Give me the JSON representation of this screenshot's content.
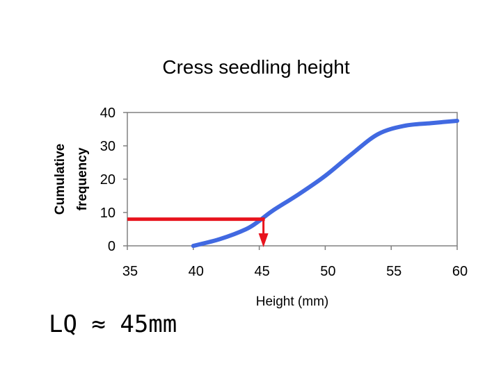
{
  "chart_data": {
    "type": "line",
    "title": "Cress seedling height",
    "xlabel": "Height (mm)",
    "ylabel": [
      "Cumulative",
      "frequency"
    ],
    "xlim": [
      35,
      60
    ],
    "ylim": [
      0,
      40
    ],
    "x_ticks": [
      "35",
      "40",
      "45",
      "50",
      "55",
      "60"
    ],
    "y_ticks": [
      "0",
      "10",
      "20",
      "30",
      "40"
    ],
    "grid": false,
    "series": [
      {
        "color": "#4169E1",
        "points": [
          [
            40,
            0
          ],
          [
            42,
            2
          ],
          [
            44,
            5
          ],
          [
            45,
            7.5
          ],
          [
            46,
            10.5
          ],
          [
            48,
            15.5
          ],
          [
            50,
            21
          ],
          [
            52,
            27.5
          ],
          [
            54,
            33.5
          ],
          [
            56,
            36
          ],
          [
            58,
            36.8
          ],
          [
            60,
            37.5
          ]
        ]
      }
    ],
    "annotation": {
      "color": "#E8141E",
      "y_value": 8,
      "x_value": 45
    }
  },
  "note": "LQ ≈ 45mm"
}
